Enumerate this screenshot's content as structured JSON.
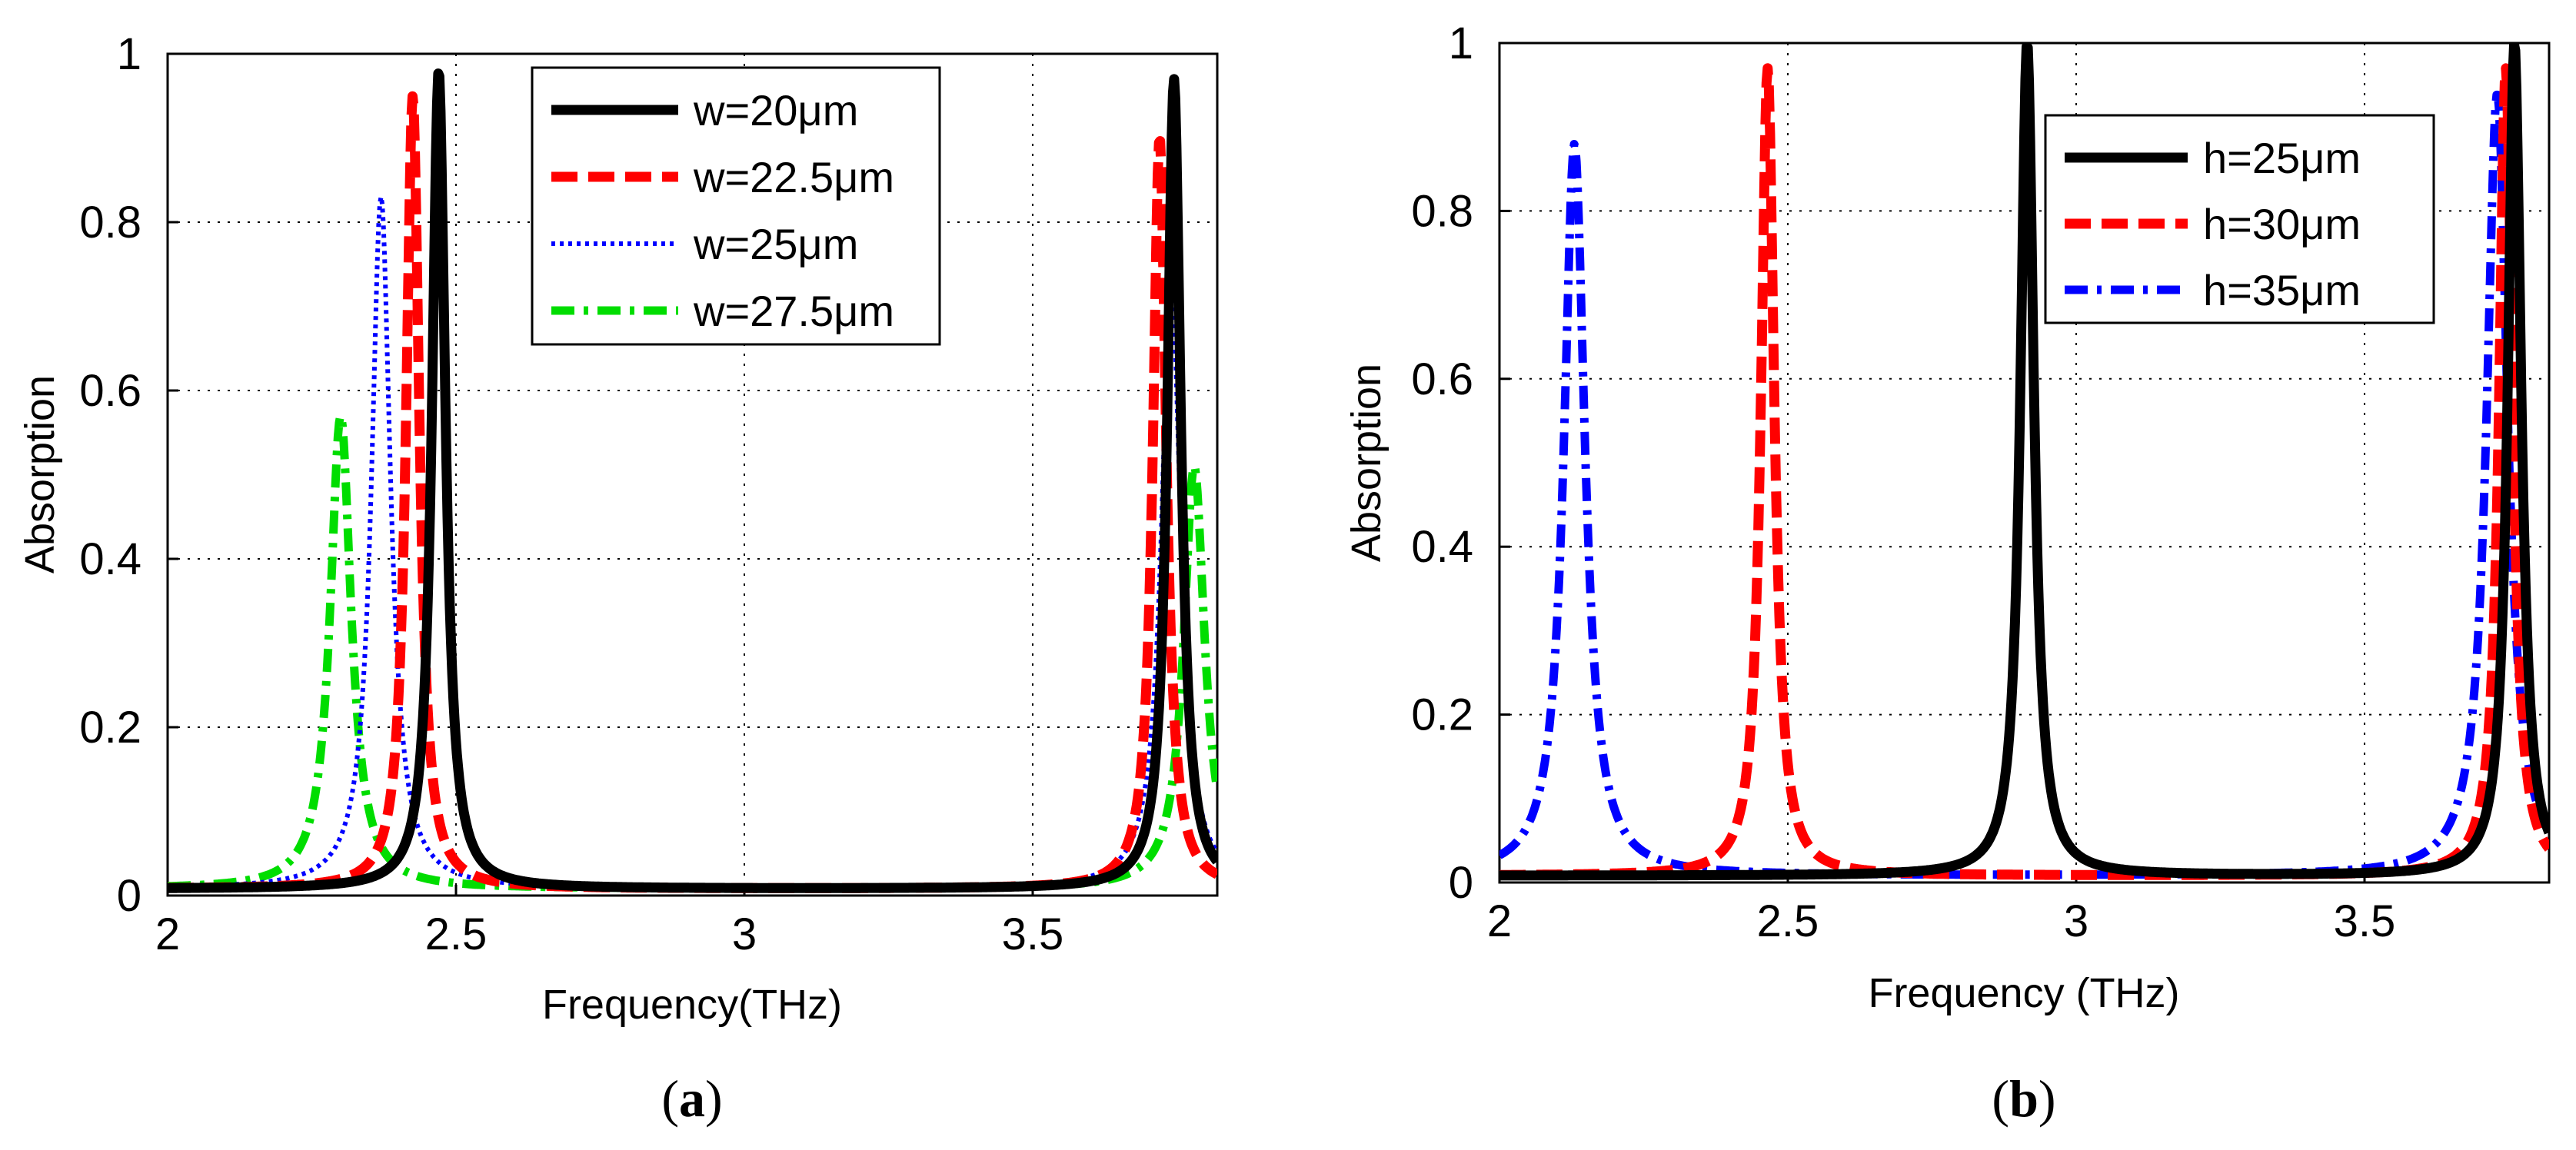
{
  "chart_data": [
    {
      "type": "line",
      "caption": "a",
      "xlabel": "Frequency(THz)",
      "ylabel": "Absorption",
      "xlim": [
        2,
        3.82
      ],
      "ylim": [
        0,
        1
      ],
      "xticks": [
        "2",
        "2.5",
        "3",
        "3.5"
      ],
      "yticks": [
        "0",
        "0.2",
        "0.4",
        "0.6",
        "0.8",
        "1"
      ],
      "grid": true,
      "legend_position": "top-right",
      "series": [
        {
          "name": "w=20μm",
          "color": "#000000",
          "style": "solid",
          "peaks": [
            {
              "f": 2.47,
              "a": 0.98
            },
            {
              "f": 3.745,
              "a": 0.97
            }
          ]
        },
        {
          "name": "w=22.5μm",
          "color": "#ff0000",
          "style": "dashed",
          "peaks": [
            {
              "f": 2.425,
              "a": 0.95
            },
            {
              "f": 3.72,
              "a": 0.9
            }
          ]
        },
        {
          "name": "w=25μm",
          "color": "#0000ff",
          "style": "dotted",
          "peaks": [
            {
              "f": 2.37,
              "a": 0.83
            },
            {
              "f": 3.74,
              "a": 0.74
            }
          ]
        },
        {
          "name": "w=27.5μm",
          "color": "#00dd00",
          "style": "dashdot",
          "peaks": [
            {
              "f": 2.3,
              "a": 0.57
            },
            {
              "f": 3.78,
              "a": 0.51
            }
          ]
        }
      ]
    },
    {
      "type": "line",
      "caption": "b",
      "xlabel": "Frequency (THz)",
      "ylabel": "Absorption",
      "xlim": [
        2,
        3.82
      ],
      "ylim": [
        0,
        1
      ],
      "xticks": [
        "2",
        "2.5",
        "3",
        "3.5"
      ],
      "yticks": [
        "0",
        "0.2",
        "0.4",
        "0.6",
        "0.8",
        "1"
      ],
      "grid": true,
      "legend_position": "top-right",
      "series": [
        {
          "name": "h=25μm",
          "color": "#000000",
          "style": "solid",
          "peaks": [
            {
              "f": 2.915,
              "a": 1.0
            },
            {
              "f": 3.76,
              "a": 1.0
            }
          ]
        },
        {
          "name": "h=30μm",
          "color": "#ff0000",
          "style": "dashed",
          "peaks": [
            {
              "f": 2.465,
              "a": 0.97
            },
            {
              "f": 3.745,
              "a": 0.97
            }
          ]
        },
        {
          "name": "h=35μm",
          "color": "#0000ff",
          "style": "dashdot",
          "peaks": [
            {
              "f": 2.13,
              "a": 0.88
            },
            {
              "f": 3.73,
              "a": 0.94
            }
          ]
        }
      ]
    }
  ]
}
